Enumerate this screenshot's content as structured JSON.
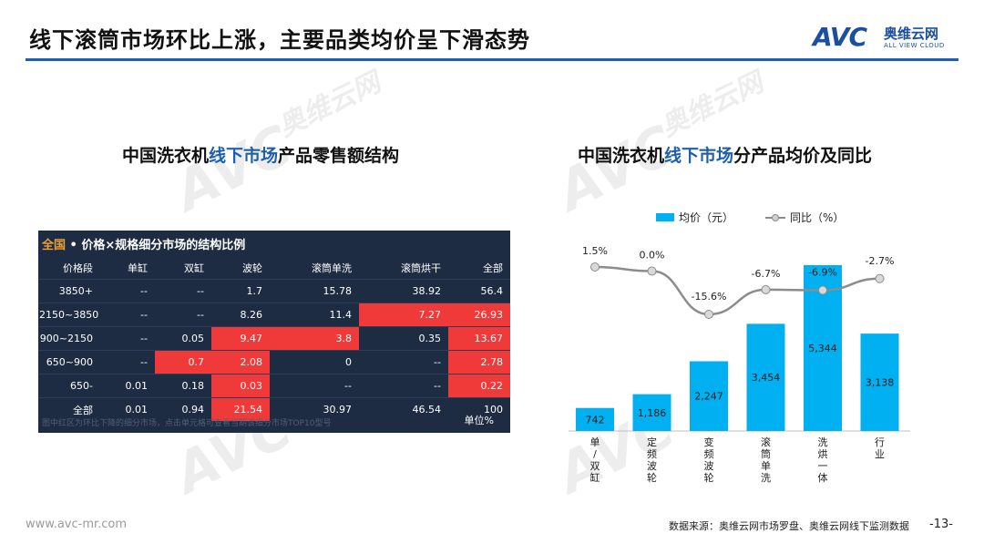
{
  "header": {
    "title": "线下滚筒市场环比上涨，主要品类均价呈下滑态势",
    "logo_mark": "AVC",
    "logo_cn": "奥维云网",
    "logo_en": "ALL VIEW CLOUD"
  },
  "left": {
    "subtitle_pre": "中国洗衣机",
    "subtitle_hl": "线下市场",
    "subtitle_post": "产品零售额结构",
    "panel_title_accent": "全国",
    "panel_title": " • 价格×规格细分市场的结构比例",
    "columns": [
      "价格段",
      "单缸",
      "双缸",
      "波轮",
      "滚筒单洗",
      "滚筒烘干",
      "全部"
    ],
    "rows": [
      {
        "label": "3850+",
        "cells": [
          "--",
          "--",
          "1.7",
          "15.78",
          "38.92",
          "56.4"
        ],
        "red": [
          false,
          false,
          false,
          false,
          false,
          false
        ]
      },
      {
        "label": "2150~3850",
        "cells": [
          "--",
          "--",
          "8.26",
          "11.4",
          "7.27",
          "26.93"
        ],
        "red": [
          false,
          false,
          false,
          false,
          true,
          true
        ]
      },
      {
        "label": "900~2150",
        "cells": [
          "--",
          "0.05",
          "9.47",
          "3.8",
          "0.35",
          "13.67"
        ],
        "red": [
          false,
          false,
          true,
          true,
          false,
          true
        ]
      },
      {
        "label": "650~900",
        "cells": [
          "--",
          "0.7",
          "2.08",
          "0",
          "--",
          "2.78"
        ],
        "red": [
          false,
          true,
          true,
          false,
          false,
          true
        ]
      },
      {
        "label": "650-",
        "cells": [
          "0.01",
          "0.18",
          "0.03",
          "--",
          "--",
          "0.22"
        ],
        "red": [
          false,
          false,
          true,
          false,
          false,
          true
        ]
      },
      {
        "label": "全部",
        "cells": [
          "0.01",
          "0.94",
          "21.54",
          "30.97",
          "46.54",
          "100"
        ],
        "red": [
          false,
          false,
          true,
          false,
          false,
          false
        ]
      }
    ],
    "footnote": "图中红区为环比下降的细分市场，点击单元格可查看当期该细分市场TOP10型号",
    "unit": "单位%",
    "colors": {
      "panel_bg": "#1e2c43",
      "highlight": "#f03a3a",
      "accent": "#f0a030"
    }
  },
  "right": {
    "subtitle_pre": "中国洗衣机",
    "subtitle_hl": "线下市场",
    "subtitle_post": "分产品均价及同比"
  },
  "chart_data": {
    "type": "bar",
    "categories": [
      "单/双缸",
      "定频波轮",
      "变频波轮",
      "滚筒单洗",
      "洗烘一体",
      "行业"
    ],
    "series": [
      {
        "name": "均价（元）",
        "type": "bar",
        "values": [
          742,
          1186,
          2247,
          3454,
          5344,
          3138
        ],
        "labels": [
          "742",
          "1,186",
          "2,247",
          "3,454",
          "5,344",
          "3,138"
        ],
        "color": "#00b0f0"
      },
      {
        "name": "同比（%）",
        "type": "line",
        "values": [
          1.5,
          0.0,
          -15.6,
          -6.7,
          -6.9,
          -2.7
        ],
        "labels": [
          "1.5%",
          "0.0%",
          "-15.6%",
          "-6.7%",
          "-6.9%",
          "-2.7%"
        ],
        "color": "#8c8c8c"
      }
    ],
    "legend_position": "top",
    "grid": false
  },
  "footer": {
    "url": "www.avc-mr.com",
    "source": "数据来源：奥维云网市场罗盘、奥维云网线下监测数据",
    "page": "-13-"
  }
}
